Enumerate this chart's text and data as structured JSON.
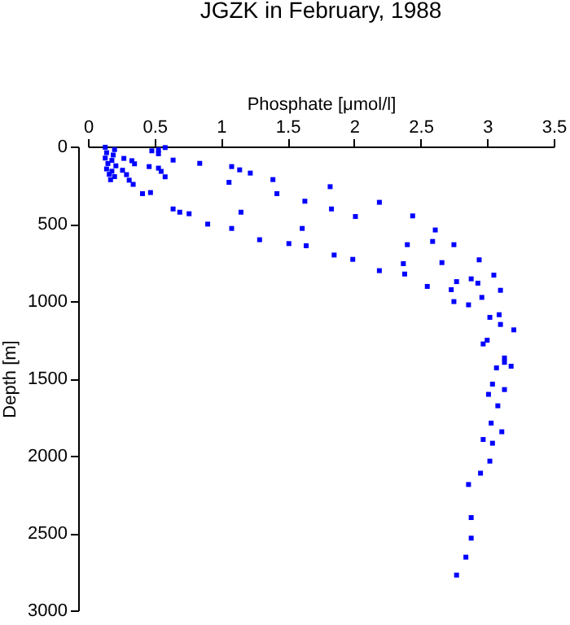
{
  "chart_data": {
    "type": "scatter",
    "title": "JGZK in February, 1988",
    "xlabel": "Phosphate [μmol/l]",
    "ylabel": "Depth [m]",
    "xlim": [
      0,
      3.5
    ],
    "xticks": [
      0,
      0.5,
      1,
      1.5,
      2,
      2.5,
      3,
      3.5
    ],
    "ylim": [
      3000,
      0
    ],
    "yticks": [
      0,
      500,
      1000,
      1500,
      2000,
      2500,
      3000
    ],
    "grid": false,
    "marker": "square",
    "series": [
      {
        "color": "#0000ff",
        "x": [
          0.13,
          0.2,
          0.14,
          0.19,
          0.13,
          0.18,
          0.15,
          0.21,
          0.14,
          0.18,
          0.16,
          0.2,
          0.17,
          0.27,
          0.33,
          0.35,
          0.26,
          0.29,
          0.31,
          0.34,
          0.41,
          0.47,
          0.48,
          0.53,
          0.58,
          0.53,
          0.46,
          0.53,
          0.55,
          0.58,
          0.64,
          0.84,
          1.08,
          1.14,
          1.22,
          1.06,
          1.39,
          1.42,
          1.63,
          0.64,
          0.69,
          0.76,
          0.9,
          1.08,
          1.15,
          1.29,
          1.61,
          1.51,
          1.64,
          1.82,
          1.83,
          2.19,
          2.01,
          2.44,
          2.61,
          2.59,
          2.4,
          2.75,
          1.85,
          1.99,
          2.19,
          2.37,
          2.38,
          2.66,
          2.94,
          3.05,
          2.55,
          2.77,
          2.88,
          2.93,
          2.73,
          3.1,
          2.96,
          2.75,
          2.86,
          3.02,
          3.09,
          3.1,
          3.2,
          3.0,
          2.97,
          3.13,
          3.13,
          3.07,
          3.18,
          3.04,
          3.13,
          3.01,
          3.08,
          3.03,
          3.11,
          2.97,
          3.04,
          3.02,
          2.95,
          2.86,
          2.88,
          2.88,
          2.84,
          2.77
        ],
        "values": [
          5,
          20,
          40,
          55,
          75,
          90,
          110,
          125,
          145,
          160,
          180,
          195,
          215,
          77,
          92,
          112,
          154,
          182,
          218,
          245,
          305,
          298,
          28,
          21,
          7,
          47,
          130,
          140,
          161,
          196,
          88,
          109,
          130,
          151,
          172,
          232,
          214,
          305,
          354,
          404,
          425,
          435,
          502,
          530,
          425,
          603,
          530,
          628,
          642,
          260,
          404,
          361,
          453,
          449,
          540,
          614,
          635,
          635,
          702,
          730,
          803,
          758,
          825,
          751,
          733,
          832,
          905,
          874,
          856,
          884,
          926,
          930,
          976,
          1003,
          1024,
          1105,
          1088,
          1151,
          1186,
          1253,
          1277,
          1368,
          1396,
          1432,
          1421,
          1537,
          1572,
          1603,
          1677,
          1789,
          1845,
          1895,
          1919,
          2035,
          2113,
          2186,
          2400,
          2533,
          2656,
          2772
        ]
      }
    ]
  }
}
